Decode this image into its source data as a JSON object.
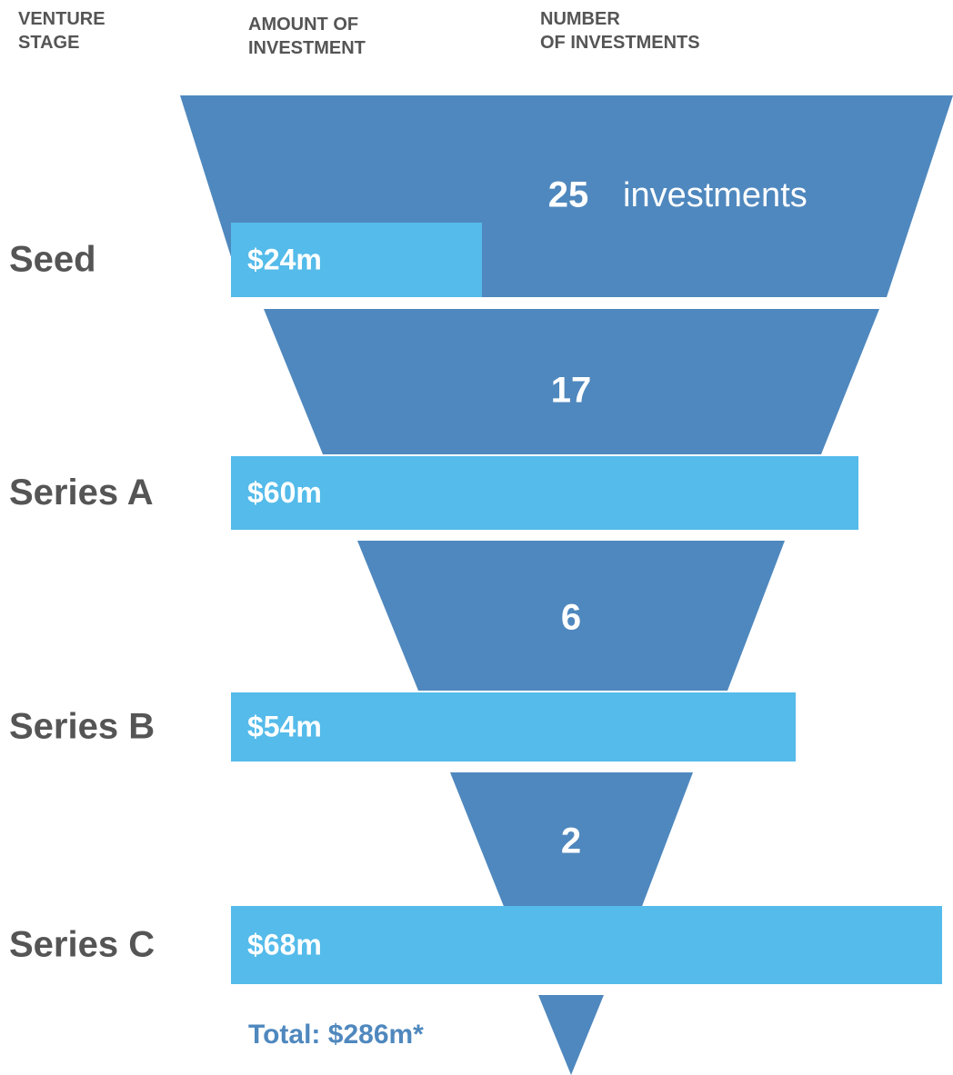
{
  "chart_data": {
    "type": "funnel",
    "columns": [
      "VENTURE\nSTAGE",
      "AMOUNT OF\nINVESTMENT",
      "NUMBER\nOF INVESTMENTS"
    ],
    "categories": [
      "Seed",
      "Series A",
      "Series B",
      "Series C"
    ],
    "values": [
      24,
      60,
      54,
      68
    ],
    "value_labels": [
      "$24m",
      "$60m",
      "$54m",
      "$68m"
    ],
    "color": "#54bbea",
    "counts": [
      25,
      17,
      6,
      2
    ],
    "count_unit": "investments",
    "funnel_color": "#4f88be",
    "total": "Total: $286m*"
  }
}
